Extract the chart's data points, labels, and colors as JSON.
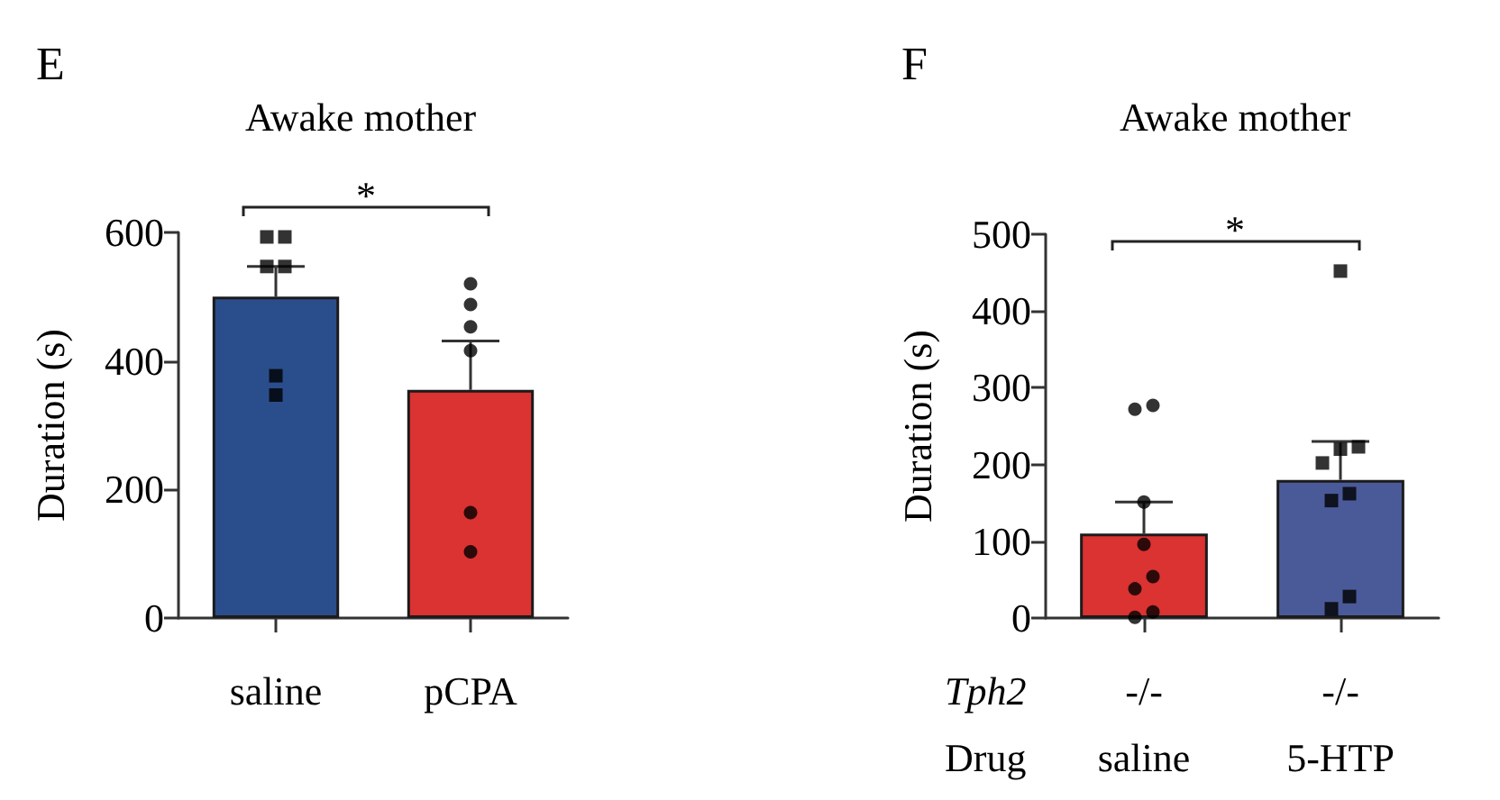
{
  "chart_data": [
    {
      "type": "bar",
      "title": "Awake mother",
      "ylabel": "Duration (s)",
      "categories": [
        "saline",
        "pCPA"
      ],
      "series": [
        {
          "type": "bar",
          "values": [
            500,
            355
          ],
          "colors": [
            "#2a4e8c",
            "#db3232"
          ],
          "errors": [
            [
              500,
              547
            ],
            [
              355,
              431
            ]
          ]
        },
        {
          "type": "scatter",
          "x": [
            "saline",
            "saline",
            "saline",
            "saline",
            "saline",
            "saline"
          ],
          "values": [
            593,
            593,
            547,
            547,
            377,
            347
          ],
          "marker": "square",
          "color": "#000000"
        },
        {
          "type": "scatter",
          "x": [
            "pCPA",
            "pCPA",
            "pCPA",
            "pCPA",
            "pCPA",
            "pCPA"
          ],
          "values": [
            520,
            488,
            453,
            416,
            164,
            103
          ],
          "marker": "circle",
          "color": "#000000"
        }
      ],
      "ylim": [
        0,
        600
      ],
      "yticks": [
        0,
        200,
        400,
        600
      ],
      "annotations": [
        "E",
        "*"
      ]
    },
    {
      "type": "bar",
      "title": "Awake mother",
      "ylabel": "Duration (s)",
      "categories": [
        "-/-\nsaline",
        "-/-\n5-HTP"
      ],
      "series": [
        {
          "type": "bar",
          "values": [
            110,
            180
          ],
          "colors": [
            "#db3232",
            "#4a5a99"
          ],
          "errors": [
            [
              110,
              151
            ],
            [
              180,
              230
            ]
          ]
        },
        {
          "type": "scatter",
          "x": [
            "-/-\nsaline",
            "-/-\nsaline",
            "-/-\nsaline",
            "-/-\nsaline",
            "-/-\nsaline",
            "-/-\nsaline",
            "-/-\nsaline",
            "-/-\nsaline"
          ],
          "values": [
            277,
            272,
            151,
            96,
            54,
            38,
            8,
            1
          ],
          "marker": "circle",
          "color": "#000000"
        },
        {
          "type": "scatter",
          "x": [
            "-/-\n5-HTP",
            "-/-\n5-HTP",
            "-/-\n5-HTP",
            "-/-\n5-HTP",
            "-/-\n5-HTP",
            "-/-\n5-HTP",
            "-/-\n5-HTP",
            "-/-\n5-HTP"
          ],
          "values": [
            452,
            223,
            220,
            202,
            162,
            153,
            28,
            12
          ],
          "marker": "square",
          "color": "#000000"
        }
      ],
      "ylim": [
        0,
        500
      ],
      "yticks": [
        0,
        100,
        200,
        300,
        400,
        500
      ],
      "annotations": [
        "F",
        "*",
        "Tph2",
        "Drug"
      ]
    }
  ]
}
